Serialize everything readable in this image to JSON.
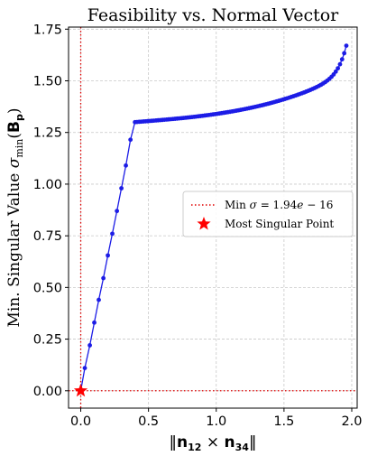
{
  "chart_data": {
    "type": "line",
    "title": "Feasibility vs. Normal Vector",
    "xlabel_prefix": "‖",
    "xlabel_n12": "n",
    "xlabel_sub12": "12",
    "xlabel_times": " × ",
    "xlabel_n34": "n",
    "xlabel_sub34": "34",
    "xlabel_suffix": "‖",
    "ylabel_text": "Min. Singular Value ",
    "ylabel_sigma": "σ",
    "ylabel_sub": "min",
    "ylabel_open": "(",
    "ylabel_B": "B",
    "ylabel_p": "p",
    "ylabel_close": ")",
    "xlim": [
      -0.09,
      2.04
    ],
    "ylim": [
      -0.084,
      1.76
    ],
    "xticks": [
      0.0,
      0.5,
      1.0,
      1.5,
      2.0
    ],
    "xtick_labels": [
      "0.0",
      "0.5",
      "1.0",
      "1.5",
      "2.0"
    ],
    "yticks": [
      0.0,
      0.25,
      0.5,
      0.75,
      1.0,
      1.25,
      1.5,
      1.75
    ],
    "ytick_labels": [
      "0.00",
      "0.25",
      "0.50",
      "0.75",
      "1.00",
      "1.25",
      "1.50",
      "1.75"
    ],
    "grid": true,
    "legend_position": "center-right",
    "series": [
      {
        "color": "#1c1ce6",
        "marker": "circle",
        "x": [
          0.0,
          0.03,
          0.067,
          0.1,
          0.133,
          0.167,
          0.2,
          0.233,
          0.267,
          0.3,
          0.333,
          0.367,
          0.4
        ],
        "y": [
          0.0,
          0.11,
          0.22,
          0.33,
          0.44,
          0.545,
          0.655,
          0.76,
          0.87,
          0.98,
          1.09,
          1.215,
          1.3
        ],
        "curve_start": 0.4,
        "curve_end": 1.96,
        "curve_points": 100
      }
    ],
    "reference_lines": [
      {
        "type": "horizontal",
        "y": 0.0,
        "color": "#e00000",
        "style": "dotted"
      },
      {
        "type": "vertical",
        "x": 0.0,
        "color": "#e00000",
        "style": "dotted"
      }
    ],
    "markers": [
      {
        "x": 0.0,
        "y": 0.0,
        "shape": "star",
        "color": "#ff0000"
      }
    ],
    "legend": [
      {
        "label_prefix": "Min ",
        "label_sigma": "σ",
        "label_eq": " = 1.94",
        "label_e": "e",
        "label_rest": " − 16",
        "style": "dotted",
        "color": "#e00000"
      },
      {
        "label": "Most Singular Point",
        "style": "star",
        "color": "#ff0000"
      }
    ]
  }
}
